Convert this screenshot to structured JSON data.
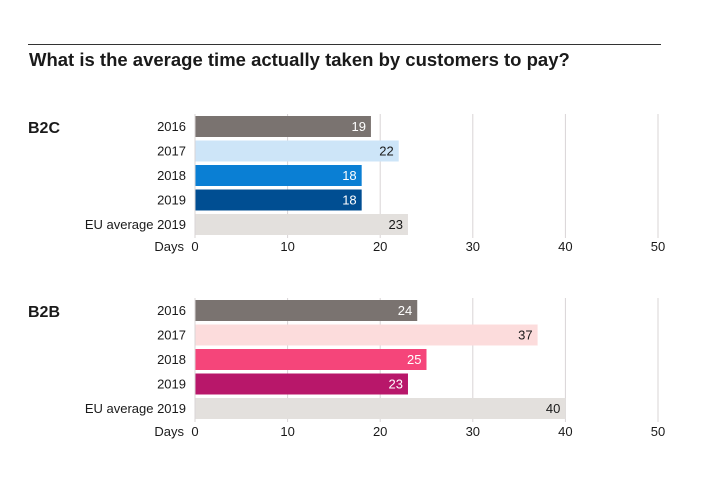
{
  "title": "What is the average time actually taken by customers to pay?",
  "chart_data": [
    {
      "type": "bar",
      "orientation": "horizontal",
      "panel": "B2C",
      "categories": [
        "2016",
        "2017",
        "2018",
        "2019",
        "EU average 2019"
      ],
      "values": [
        19,
        22,
        18,
        18,
        23
      ],
      "colors": [
        "#7a7370",
        "#cde5f8",
        "#0a7fd4",
        "#004e92",
        "#e3e0dd"
      ],
      "label_colors": [
        "#ffffff",
        "#1a1a1a",
        "#ffffff",
        "#ffffff",
        "#1a1a1a"
      ],
      "xlabel": "Days",
      "xlim": [
        0,
        50
      ],
      "ticks": [
        0,
        10,
        20,
        30,
        40,
        50
      ],
      "grid": true
    },
    {
      "type": "bar",
      "orientation": "horizontal",
      "panel": "B2B",
      "categories": [
        "2016",
        "2017",
        "2018",
        "2019",
        "EU average 2019"
      ],
      "values": [
        24,
        37,
        25,
        23,
        40
      ],
      "colors": [
        "#7a7370",
        "#fcdcdc",
        "#f5457a",
        "#b8176a",
        "#e3e0dd"
      ],
      "label_colors": [
        "#ffffff",
        "#1a1a1a",
        "#ffffff",
        "#ffffff",
        "#1a1a1a"
      ],
      "xlabel": "Days",
      "xlim": [
        0,
        50
      ],
      "ticks": [
        0,
        10,
        20,
        30,
        40,
        50
      ],
      "grid": true
    }
  ]
}
